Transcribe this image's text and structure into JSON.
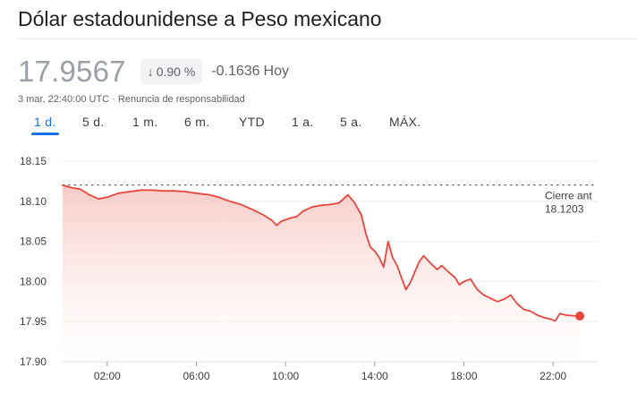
{
  "header": {
    "title": "Dólar estadounidense a Peso mexicano"
  },
  "quote": {
    "price": "17.9567",
    "change_arrow": "↓",
    "change_percent": "0.90 %",
    "change_value": "-0.1636",
    "change_period": "Hoy",
    "timestamp": "3 mar, 22:40:00 UTC",
    "separator": "·",
    "disclaimer": "Renuncia de responsabilidad"
  },
  "tabs": [
    {
      "label": "1 d.",
      "active": true
    },
    {
      "label": "5 d.",
      "active": false
    },
    {
      "label": "1 m.",
      "active": false
    },
    {
      "label": "6 m.",
      "active": false
    },
    {
      "label": "YTD",
      "active": false
    },
    {
      "label": "1 a.",
      "active": false
    },
    {
      "label": "5 a.",
      "active": false
    },
    {
      "label": "MÁX.",
      "active": false
    }
  ],
  "colors": {
    "line": "#e8463b",
    "fill_top": "#f7c9c4",
    "fill_bottom": "#ffffff",
    "grid": "#eeeeee",
    "accent": "#1a73e8"
  },
  "chart_data": {
    "type": "line",
    "x_unit": "hours (UTC, 3 mar)",
    "xlim": [
      0,
      24
    ],
    "ylim": [
      17.9,
      18.15
    ],
    "y_ticks": [
      18.15,
      18.1,
      18.05,
      18.0,
      17.95,
      17.9
    ],
    "y_tick_labels": [
      "18.15",
      "18.10",
      "18.05",
      "18.00",
      "17.95",
      "17.90"
    ],
    "x_ticks": [
      2,
      6,
      10,
      14,
      18,
      22
    ],
    "x_tick_labels": [
      "02:00",
      "06:00",
      "10:00",
      "14:00",
      "18:00",
      "22:00"
    ],
    "previous_close": {
      "label": "Cierre ant",
      "value": 18.1203,
      "value_label": "18.1203"
    },
    "series": [
      {
        "points": [
          [
            0.0,
            18.12
          ],
          [
            0.4,
            18.117
          ],
          [
            0.8,
            18.115
          ],
          [
            1.2,
            18.108
          ],
          [
            1.6,
            18.103
          ],
          [
            2.0,
            18.105
          ],
          [
            2.5,
            18.11
          ],
          [
            3.0,
            18.112
          ],
          [
            3.5,
            18.114
          ],
          [
            4.0,
            18.114
          ],
          [
            4.5,
            18.113
          ],
          [
            5.0,
            18.113
          ],
          [
            5.5,
            18.112
          ],
          [
            6.0,
            18.11
          ],
          [
            6.6,
            18.108
          ],
          [
            7.0,
            18.105
          ],
          [
            7.5,
            18.1
          ],
          [
            8.0,
            18.096
          ],
          [
            8.5,
            18.09
          ],
          [
            9.0,
            18.083
          ],
          [
            9.4,
            18.076
          ],
          [
            9.6,
            18.07
          ],
          [
            9.8,
            18.075
          ],
          [
            10.2,
            18.079
          ],
          [
            10.5,
            18.081
          ],
          [
            10.8,
            18.088
          ],
          [
            11.2,
            18.093
          ],
          [
            11.6,
            18.095
          ],
          [
            12.0,
            18.096
          ],
          [
            12.4,
            18.098
          ],
          [
            12.8,
            18.108
          ],
          [
            13.1,
            18.098
          ],
          [
            13.4,
            18.083
          ],
          [
            13.6,
            18.06
          ],
          [
            13.8,
            18.043
          ],
          [
            14.0,
            18.038
          ],
          [
            14.2,
            18.03
          ],
          [
            14.4,
            18.018
          ],
          [
            14.6,
            18.05
          ],
          [
            14.8,
            18.03
          ],
          [
            15.0,
            18.02
          ],
          [
            15.2,
            18.005
          ],
          [
            15.4,
            17.99
          ],
          [
            15.6,
            17.999
          ],
          [
            15.8,
            18.012
          ],
          [
            16.0,
            18.025
          ],
          [
            16.2,
            18.032
          ],
          [
            16.5,
            18.023
          ],
          [
            16.8,
            18.015
          ],
          [
            17.0,
            18.02
          ],
          [
            17.3,
            18.012
          ],
          [
            17.6,
            18.005
          ],
          [
            17.8,
            17.996
          ],
          [
            18.0,
            18.0
          ],
          [
            18.3,
            18.003
          ],
          [
            18.6,
            17.99
          ],
          [
            18.9,
            17.983
          ],
          [
            19.2,
            17.979
          ],
          [
            19.5,
            17.975
          ],
          [
            19.8,
            17.978
          ],
          [
            20.1,
            17.983
          ],
          [
            20.4,
            17.972
          ],
          [
            20.7,
            17.965
          ],
          [
            21.0,
            17.963
          ],
          [
            21.3,
            17.958
          ],
          [
            21.6,
            17.955
          ],
          [
            21.9,
            17.953
          ],
          [
            22.1,
            17.951
          ],
          [
            22.3,
            17.96
          ],
          [
            22.6,
            17.958
          ],
          [
            23.0,
            17.957
          ],
          [
            23.2,
            17.957
          ]
        ]
      }
    ],
    "end_marker": true,
    "grid": "horizontal"
  }
}
